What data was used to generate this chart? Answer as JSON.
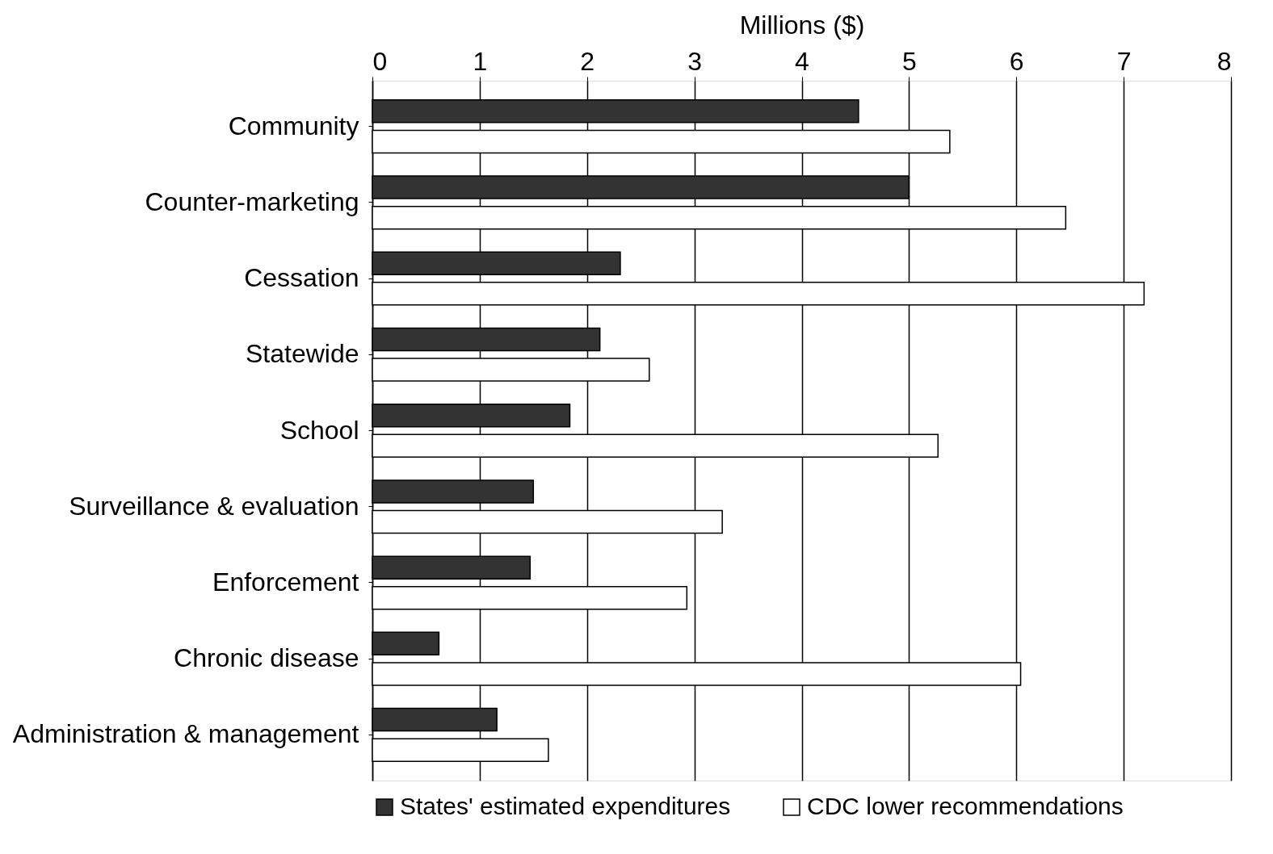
{
  "chart_data": {
    "type": "bar",
    "orientation": "horizontal",
    "xlabel": "Millions ($)",
    "categories": [
      "Community",
      "Counter-marketing",
      "Cessation",
      "Statewide",
      "School",
      "Surveillance & evaluation",
      "Enforcement",
      "Chronic disease",
      "Administration & management"
    ],
    "series": [
      {
        "name": "States' estimated expenditures",
        "color": "#333333",
        "values": [
          4.53,
          5.0,
          2.31,
          2.12,
          1.84,
          1.5,
          1.47,
          0.62,
          1.16
        ]
      },
      {
        "name": "CDC lower recommendations",
        "color": "#ffffff",
        "values": [
          5.38,
          6.46,
          7.19,
          2.58,
          5.27,
          3.26,
          2.93,
          6.04,
          1.64
        ]
      }
    ],
    "xlim": [
      0,
      8
    ],
    "xticks": [
      0,
      1,
      2,
      3,
      4,
      5,
      6,
      7,
      8
    ],
    "grid": "x",
    "legend": "bottom"
  }
}
